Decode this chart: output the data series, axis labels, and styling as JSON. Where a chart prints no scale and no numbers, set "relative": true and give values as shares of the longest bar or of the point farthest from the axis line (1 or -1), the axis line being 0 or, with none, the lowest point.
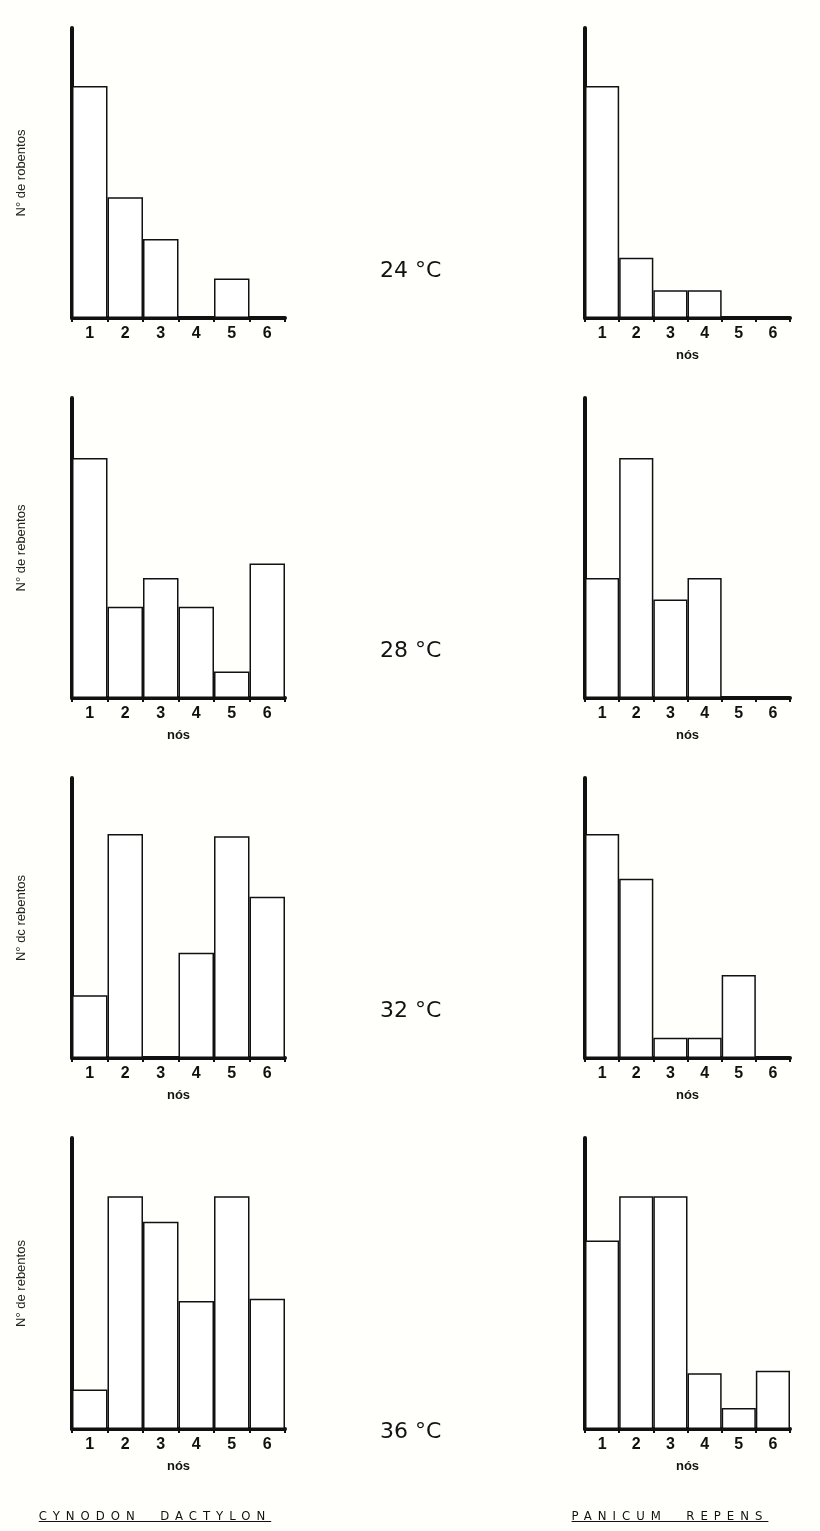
{
  "chart_data": [
    {
      "type": "bar",
      "relative": true,
      "annotations": [
        "24 °C"
      ],
      "ylabel": "N° de robentos",
      "categories": [
        "1",
        "2",
        "3",
        "4",
        "5",
        "6"
      ],
      "color": "#ffffff",
      "values": [
        1,
        0.52,
        0.34,
        0,
        0.17,
        0
      ]
    },
    {
      "type": "bar",
      "relative": true,
      "xlabel": "nós",
      "categories": [
        "1",
        "2",
        "3",
        "4",
        "5",
        "6"
      ],
      "color": "#ffffff",
      "values": [
        1,
        0.26,
        0.12,
        0.12,
        0,
        0
      ]
    },
    {
      "type": "bar",
      "relative": true,
      "annotations": [
        "28 °C"
      ],
      "ylabel": "N° de rebentos",
      "xlabel": "nós",
      "categories": [
        "1",
        "2",
        "3",
        "4",
        "5",
        "6"
      ],
      "color": "#ffffff",
      "values": [
        1,
        0.38,
        0.5,
        0.38,
        0.11,
        0.56
      ]
    },
    {
      "type": "bar",
      "relative": true,
      "xlabel": "nós",
      "categories": [
        "1",
        "2",
        "3",
        "4",
        "5",
        "6"
      ],
      "color": "#ffffff",
      "values": [
        0.5,
        1,
        0.41,
        0.5,
        0,
        0
      ]
    },
    {
      "type": "bar",
      "relative": true,
      "annotations": [
        "32 °C"
      ],
      "ylabel": "N° dc rebentos",
      "xlabel": "nós",
      "categories": [
        "1",
        "2",
        "3",
        "4",
        "5",
        "6"
      ],
      "color": "#ffffff",
      "values": [
        0.28,
        1,
        0,
        0.47,
        0.99,
        0.72
      ]
    },
    {
      "type": "bar",
      "relative": true,
      "xlabel": "nós",
      "categories": [
        "1",
        "2",
        "3",
        "4",
        "5",
        "6"
      ],
      "color": "#ffffff",
      "values": [
        1,
        0.8,
        0.09,
        0.09,
        0.37,
        0
      ]
    },
    {
      "type": "bar",
      "relative": true,
      "annotations": [
        "36 °C",
        "CYNODON  DACTYLON"
      ],
      "ylabel": "N° de rebentos",
      "xlabel": "nós",
      "categories": [
        "1",
        "2",
        "3",
        "4",
        "5",
        "6"
      ],
      "color": "#ffffff",
      "values": [
        0.17,
        1,
        0.89,
        0.55,
        1,
        0.56
      ]
    },
    {
      "type": "bar",
      "relative": true,
      "xlabel": "nós",
      "annotations": [
        "PANICUM  REPENS"
      ],
      "categories": [
        "1",
        "2",
        "3",
        "4",
        "5",
        "6"
      ],
      "color": "#ffffff",
      "values": [
        0.81,
        1,
        1,
        0.24,
        0.09,
        0.25
      ]
    }
  ]
}
